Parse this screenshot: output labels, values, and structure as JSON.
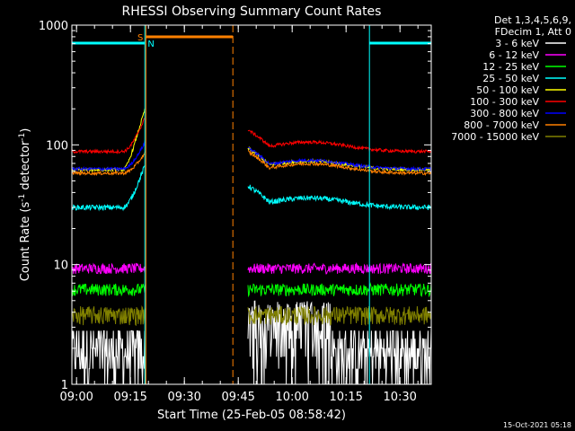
{
  "chart_data": {
    "type": "line",
    "title": "RHESSI Observing Summary Count Rates",
    "xlabel": "Start Time (25-Feb-05 08:58:42)",
    "ylabel": "Count Rate (s",
    "ylabel_sup1": "-1",
    "ylabel_mid": " detector",
    "ylabel_sup2": "-1",
    "ylabel_end": ")",
    "yscale": "log",
    "ylim": [
      1,
      1000
    ],
    "xlim_minutes": [
      0,
      100
    ],
    "x_ticks": [
      {
        "label": "09:00",
        "minute": 1.3
      },
      {
        "label": "09:15",
        "minute": 16.3
      },
      {
        "label": "09:30",
        "minute": 31.3
      },
      {
        "label": "09:45",
        "minute": 46.3
      },
      {
        "label": "10:00",
        "minute": 61.3
      },
      {
        "label": "10:15",
        "minute": 76.3
      },
      {
        "label": "10:30",
        "minute": 91.3
      }
    ],
    "y_ticks": [
      {
        "label": "1",
        "value": 1
      },
      {
        "label": "10",
        "value": 10
      },
      {
        "label": "100",
        "value": 100
      },
      {
        "label": "1000",
        "value": 1000
      }
    ],
    "legend_header": [
      "Det 1,3,4,5,6,9,",
      "FDecim 1, Att 0"
    ],
    "series": [
      {
        "name": "3 - 6 keV",
        "color": "#ffffff",
        "base": 1.6,
        "noise": 0.45,
        "hump": 0,
        "rise": 0
      },
      {
        "name": "6 - 12 keV",
        "color": "#ff00ff",
        "base": 9.3,
        "noise": 0.1,
        "hump": 0,
        "rise": 0
      },
      {
        "name": "12 - 25 keV",
        "color": "#00ff00",
        "base": 6.2,
        "noise": 0.12,
        "hump": 0,
        "rise": 0
      },
      {
        "name": "25 - 50 keV",
        "color": "#00ffff",
        "base": 30,
        "noise": 0.05,
        "hump": 0.2,
        "rise": 1.3
      },
      {
        "name": "50 - 100 keV",
        "color": "#ffff00",
        "base": 62,
        "noise": 0.03,
        "hump": 0.18,
        "rise": 2.3
      },
      {
        "name": "100 - 300 keV",
        "color": "#ff0000",
        "base": 88,
        "noise": 0.03,
        "hump": 0.2,
        "rise": 0.95
      },
      {
        "name": "300 - 800 keV",
        "color": "#0000ff",
        "base": 63,
        "noise": 0.03,
        "hump": 0.18,
        "rise": 0.7
      },
      {
        "name": "800 - 7000 keV",
        "color": "#ff8000",
        "base": 58,
        "noise": 0.03,
        "hump": 0.2,
        "rise": 0.5
      },
      {
        "name": "7000 - 15000 keV",
        "color": "#808000",
        "base": 3.8,
        "noise": 0.18,
        "hump": 0,
        "rise": 0
      }
    ],
    "data_segments_minutes": [
      [
        0,
        20.5
      ],
      [
        49,
        100
      ]
    ],
    "flags": {
      "saa_label": "S",
      "night_label": "N",
      "saa_color": "#ff8000",
      "night_color": "#00ffff"
    },
    "night_intervals_minutes": [
      [
        0,
        20.3
      ],
      [
        82.8,
        100
      ]
    ],
    "saa_interval_minutes": [
      20.6,
      44.8
    ],
    "footer_timestamp": "15-Oct-2021 05:18"
  }
}
